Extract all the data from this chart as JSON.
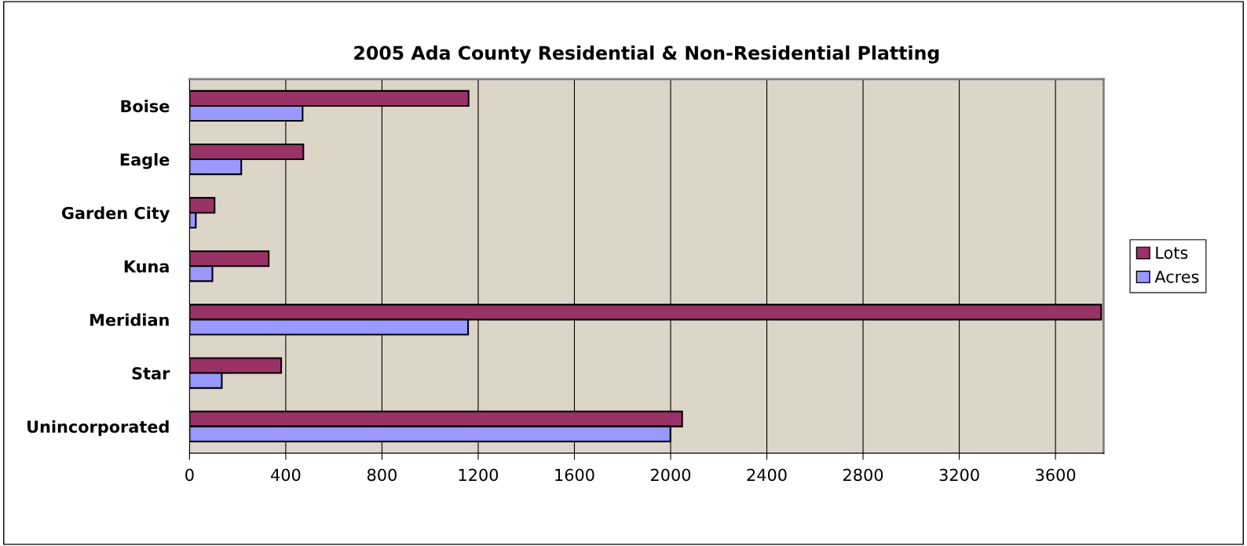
{
  "chart_data": {
    "type": "bar",
    "orientation": "horizontal",
    "title": "2005 Ada County Residential & Non-Residential Platting",
    "categories": [
      "Boise",
      "Eagle",
      "Garden City",
      "Kuna",
      "Meridian",
      "Star",
      "Unincorporated"
    ],
    "series": [
      {
        "name": "Lots",
        "color": "#993366",
        "values": [
          1160,
          473,
          104,
          329,
          3790,
          381,
          2048
        ]
      },
      {
        "name": "Acres",
        "color": "#9999ff",
        "values": [
          470,
          215,
          26,
          95,
          1158,
          134,
          1999
        ]
      }
    ],
    "xlim": [
      0,
      3800
    ],
    "xticks": [
      0,
      400,
      800,
      1200,
      1600,
      2000,
      2400,
      2800,
      3200,
      3600
    ],
    "grid": "x",
    "legend": "right"
  }
}
